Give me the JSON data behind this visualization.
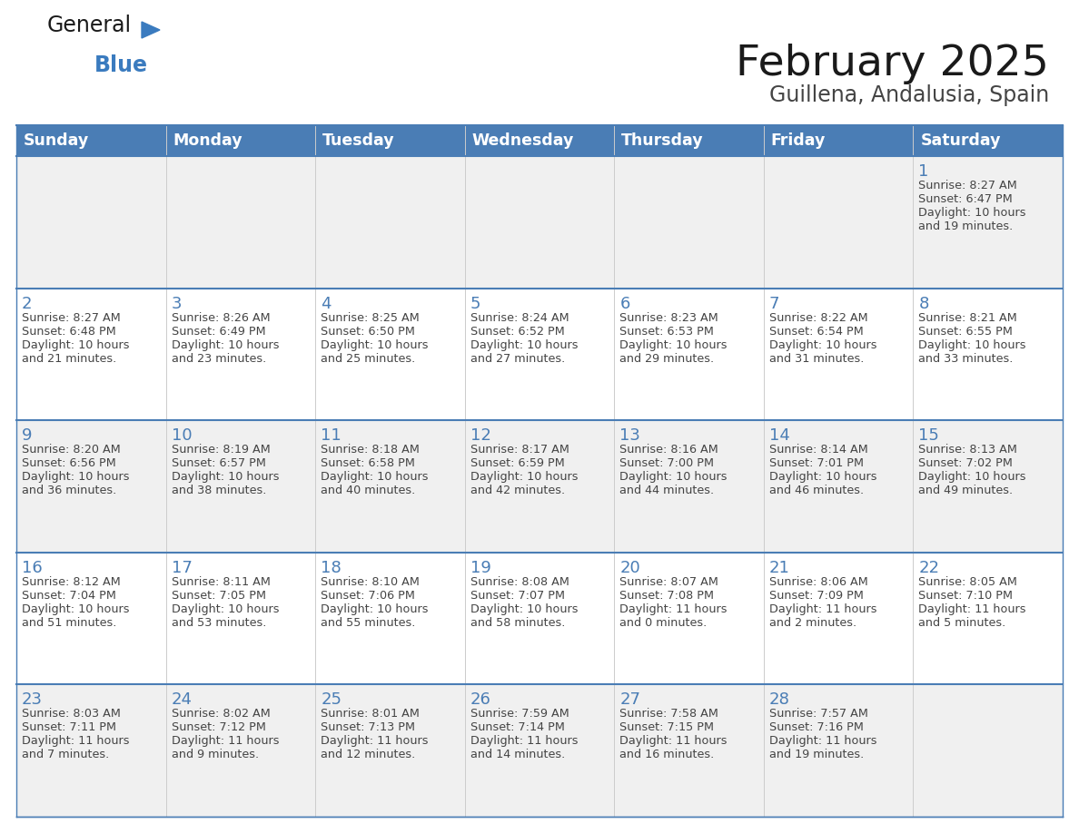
{
  "title": "February 2025",
  "subtitle": "Guillena, Andalusia, Spain",
  "header_bg_color": "#4a7db5",
  "header_text_color": "#ffffff",
  "cell_bg_white": "#ffffff",
  "cell_bg_gray": "#f0f0f0",
  "border_color_dark": "#4a7db5",
  "border_color_light": "#cccccc",
  "day_number_color": "#4a7db5",
  "cell_text_color": "#444444",
  "days_of_week": [
    "Sunday",
    "Monday",
    "Tuesday",
    "Wednesday",
    "Thursday",
    "Friday",
    "Saturday"
  ],
  "logo_general_color": "#1a1a1a",
  "logo_blue_color": "#3a7bbf",
  "logo_triangle_color": "#3a7bbf",
  "title_color": "#1a1a1a",
  "subtitle_color": "#444444",
  "weeks": [
    [
      {
        "day": null,
        "sunrise": null,
        "sunset": null,
        "daylight_line1": null,
        "daylight_line2": null
      },
      {
        "day": null,
        "sunrise": null,
        "sunset": null,
        "daylight_line1": null,
        "daylight_line2": null
      },
      {
        "day": null,
        "sunrise": null,
        "sunset": null,
        "daylight_line1": null,
        "daylight_line2": null
      },
      {
        "day": null,
        "sunrise": null,
        "sunset": null,
        "daylight_line1": null,
        "daylight_line2": null
      },
      {
        "day": null,
        "sunrise": null,
        "sunset": null,
        "daylight_line1": null,
        "daylight_line2": null
      },
      {
        "day": null,
        "sunrise": null,
        "sunset": null,
        "daylight_line1": null,
        "daylight_line2": null
      },
      {
        "day": 1,
        "sunrise": "8:27 AM",
        "sunset": "6:47 PM",
        "daylight_line1": "Daylight: 10 hours",
        "daylight_line2": "and 19 minutes."
      }
    ],
    [
      {
        "day": 2,
        "sunrise": "8:27 AM",
        "sunset": "6:48 PM",
        "daylight_line1": "Daylight: 10 hours",
        "daylight_line2": "and 21 minutes."
      },
      {
        "day": 3,
        "sunrise": "8:26 AM",
        "sunset": "6:49 PM",
        "daylight_line1": "Daylight: 10 hours",
        "daylight_line2": "and 23 minutes."
      },
      {
        "day": 4,
        "sunrise": "8:25 AM",
        "sunset": "6:50 PM",
        "daylight_line1": "Daylight: 10 hours",
        "daylight_line2": "and 25 minutes."
      },
      {
        "day": 5,
        "sunrise": "8:24 AM",
        "sunset": "6:52 PM",
        "daylight_line1": "Daylight: 10 hours",
        "daylight_line2": "and 27 minutes."
      },
      {
        "day": 6,
        "sunrise": "8:23 AM",
        "sunset": "6:53 PM",
        "daylight_line1": "Daylight: 10 hours",
        "daylight_line2": "and 29 minutes."
      },
      {
        "day": 7,
        "sunrise": "8:22 AM",
        "sunset": "6:54 PM",
        "daylight_line1": "Daylight: 10 hours",
        "daylight_line2": "and 31 minutes."
      },
      {
        "day": 8,
        "sunrise": "8:21 AM",
        "sunset": "6:55 PM",
        "daylight_line1": "Daylight: 10 hours",
        "daylight_line2": "and 33 minutes."
      }
    ],
    [
      {
        "day": 9,
        "sunrise": "8:20 AM",
        "sunset": "6:56 PM",
        "daylight_line1": "Daylight: 10 hours",
        "daylight_line2": "and 36 minutes."
      },
      {
        "day": 10,
        "sunrise": "8:19 AM",
        "sunset": "6:57 PM",
        "daylight_line1": "Daylight: 10 hours",
        "daylight_line2": "and 38 minutes."
      },
      {
        "day": 11,
        "sunrise": "8:18 AM",
        "sunset": "6:58 PM",
        "daylight_line1": "Daylight: 10 hours",
        "daylight_line2": "and 40 minutes."
      },
      {
        "day": 12,
        "sunrise": "8:17 AM",
        "sunset": "6:59 PM",
        "daylight_line1": "Daylight: 10 hours",
        "daylight_line2": "and 42 minutes."
      },
      {
        "day": 13,
        "sunrise": "8:16 AM",
        "sunset": "7:00 PM",
        "daylight_line1": "Daylight: 10 hours",
        "daylight_line2": "and 44 minutes."
      },
      {
        "day": 14,
        "sunrise": "8:14 AM",
        "sunset": "7:01 PM",
        "daylight_line1": "Daylight: 10 hours",
        "daylight_line2": "and 46 minutes."
      },
      {
        "day": 15,
        "sunrise": "8:13 AM",
        "sunset": "7:02 PM",
        "daylight_line1": "Daylight: 10 hours",
        "daylight_line2": "and 49 minutes."
      }
    ],
    [
      {
        "day": 16,
        "sunrise": "8:12 AM",
        "sunset": "7:04 PM",
        "daylight_line1": "Daylight: 10 hours",
        "daylight_line2": "and 51 minutes."
      },
      {
        "day": 17,
        "sunrise": "8:11 AM",
        "sunset": "7:05 PM",
        "daylight_line1": "Daylight: 10 hours",
        "daylight_line2": "and 53 minutes."
      },
      {
        "day": 18,
        "sunrise": "8:10 AM",
        "sunset": "7:06 PM",
        "daylight_line1": "Daylight: 10 hours",
        "daylight_line2": "and 55 minutes."
      },
      {
        "day": 19,
        "sunrise": "8:08 AM",
        "sunset": "7:07 PM",
        "daylight_line1": "Daylight: 10 hours",
        "daylight_line2": "and 58 minutes."
      },
      {
        "day": 20,
        "sunrise": "8:07 AM",
        "sunset": "7:08 PM",
        "daylight_line1": "Daylight: 11 hours",
        "daylight_line2": "and 0 minutes."
      },
      {
        "day": 21,
        "sunrise": "8:06 AM",
        "sunset": "7:09 PM",
        "daylight_line1": "Daylight: 11 hours",
        "daylight_line2": "and 2 minutes."
      },
      {
        "day": 22,
        "sunrise": "8:05 AM",
        "sunset": "7:10 PM",
        "daylight_line1": "Daylight: 11 hours",
        "daylight_line2": "and 5 minutes."
      }
    ],
    [
      {
        "day": 23,
        "sunrise": "8:03 AM",
        "sunset": "7:11 PM",
        "daylight_line1": "Daylight: 11 hours",
        "daylight_line2": "and 7 minutes."
      },
      {
        "day": 24,
        "sunrise": "8:02 AM",
        "sunset": "7:12 PM",
        "daylight_line1": "Daylight: 11 hours",
        "daylight_line2": "and 9 minutes."
      },
      {
        "day": 25,
        "sunrise": "8:01 AM",
        "sunset": "7:13 PM",
        "daylight_line1": "Daylight: 11 hours",
        "daylight_line2": "and 12 minutes."
      },
      {
        "day": 26,
        "sunrise": "7:59 AM",
        "sunset": "7:14 PM",
        "daylight_line1": "Daylight: 11 hours",
        "daylight_line2": "and 14 minutes."
      },
      {
        "day": 27,
        "sunrise": "7:58 AM",
        "sunset": "7:15 PM",
        "daylight_line1": "Daylight: 11 hours",
        "daylight_line2": "and 16 minutes."
      },
      {
        "day": 28,
        "sunrise": "7:57 AM",
        "sunset": "7:16 PM",
        "daylight_line1": "Daylight: 11 hours",
        "daylight_line2": "and 19 minutes."
      },
      {
        "day": null,
        "sunrise": null,
        "sunset": null,
        "daylight_line1": null,
        "daylight_line2": null
      }
    ]
  ]
}
